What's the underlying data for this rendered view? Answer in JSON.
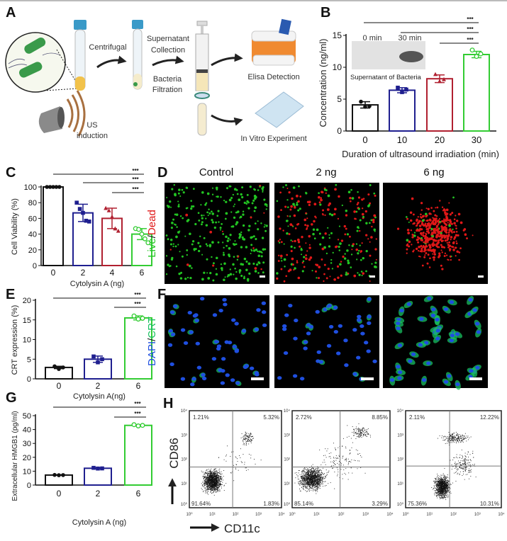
{
  "panel_labels": {
    "a": "A",
    "b": "B",
    "c": "C",
    "d": "D",
    "e": "E",
    "f": "F",
    "g": "G",
    "h": "H"
  },
  "panel_a": {
    "centrifugal": "Centrifugal",
    "supernatant": "Supernatant",
    "collection": "Collection",
    "bacteria": "Bacteria",
    "filtration": "Filtration",
    "elisa": "Elisa Detection",
    "in_vitro": "In Vitro Experiment",
    "us": "US",
    "induction": "induction"
  },
  "panel_b_inset": {
    "lane1": "0 min",
    "lane2": "30 min",
    "caption": "Supernatant of Bacteria"
  },
  "panel_d": {
    "columns": [
      "Control",
      "2 ng",
      "6 ng"
    ],
    "live": "Live",
    "sep": "/",
    "dead": "Dead",
    "live_color": "#22c422",
    "dead_color": "#e01818"
  },
  "panel_f": {
    "dapi": "DAPI",
    "sep": "/",
    "crt": "CRT",
    "dapi_color": "#1f4fe0",
    "crt_color": "#18c060"
  },
  "panel_h": {
    "y_label": "CD86",
    "x_label": "CD11c",
    "ticks": [
      "10⁰",
      "10¹",
      "10²",
      "10³",
      "10⁴"
    ],
    "plots": [
      {
        "ul": "1.21%",
        "ur": "5.32%",
        "ll": "91.64%",
        "lr": "1.83%"
      },
      {
        "ul": "2.72%",
        "ur": "8.85%",
        "ll": "85.14%",
        "lr": "3.29%"
      },
      {
        "ul": "2.11%",
        "ur": "12.22%",
        "ll": "75.36%",
        "lr": "10.31%"
      }
    ]
  },
  "colors": {
    "black": "#111111",
    "blue": "#1f1f8f",
    "red": "#b02030",
    "green": "#33cc33"
  },
  "chart_data": [
    {
      "panel": "B",
      "type": "bar",
      "categories": [
        "0",
        "10",
        "20",
        "30"
      ],
      "values": [
        4.1,
        6.4,
        8.2,
        12.0
      ],
      "points": [
        [
          4.6,
          3.8,
          3.9
        ],
        [
          6.8,
          6.1,
          6.5
        ],
        [
          8.9,
          7.8,
          8.1
        ],
        [
          12.7,
          11.7,
          12.1
        ]
      ],
      "errors": [
        0.5,
        0.4,
        0.6,
        0.5
      ],
      "xlabel": "Duration of ultrasound irradiation (min)",
      "ylabel": "Concentration (ng/ml)",
      "ylim": [
        0,
        15
      ],
      "yticks": [
        "0",
        "5",
        "10",
        "15"
      ],
      "significance": [
        {
          "from": "0",
          "to": "30",
          "label": "***"
        },
        {
          "from": "10",
          "to": "30",
          "label": "***"
        },
        {
          "from": "20",
          "to": "30",
          "label": "***"
        }
      ]
    },
    {
      "panel": "C",
      "type": "bar",
      "categories": [
        "0",
        "2",
        "4",
        "6"
      ],
      "values": [
        100,
        67,
        60,
        40
      ],
      "points": [
        [
          100,
          100,
          100,
          100,
          100
        ],
        [
          80,
          72,
          67,
          57,
          56
        ],
        [
          73,
          70,
          62,
          47,
          44
        ],
        [
          47,
          46,
          40,
          34,
          29
        ]
      ],
      "errors": [
        0,
        11,
        13,
        7
      ],
      "xlabel": "Cytolysin A (ng)",
      "ylabel": "Cell Viability (%)",
      "ylim": [
        0,
        100
      ],
      "yticks": [
        "0",
        "20",
        "40",
        "60",
        "80",
        "100"
      ],
      "significance": [
        {
          "from": "0",
          "to": "6",
          "label": "***"
        },
        {
          "from": "2",
          "to": "6",
          "label": "***"
        },
        {
          "from": "4",
          "to": "6",
          "label": "***"
        }
      ]
    },
    {
      "panel": "E",
      "type": "bar",
      "categories": [
        "0",
        "2",
        "6"
      ],
      "values": [
        2.9,
        5.0,
        15.5
      ],
      "points": [
        [
          3.2,
          2.5,
          2.9
        ],
        [
          5.7,
          4.2,
          5.0
        ],
        [
          16.0,
          15.2,
          15.4
        ]
      ],
      "errors": [
        0.3,
        0.8,
        0.5
      ],
      "xlabel": "Cytolysin A(ng)",
      "ylabel": "CRT expression (%)",
      "ylim": [
        0,
        20
      ],
      "yticks": [
        "0",
        "5",
        "10",
        "15",
        "20"
      ],
      "significance": [
        {
          "from": "0",
          "to": "6",
          "label": "***"
        },
        {
          "from": "2",
          "to": "6",
          "label": "***"
        }
      ]
    },
    {
      "panel": "G",
      "type": "bar",
      "categories": [
        "0",
        "2",
        "6"
      ],
      "values": [
        7.2,
        12.1,
        43.0
      ],
      "points": [
        [
          7.3,
          7.1,
          7.2
        ],
        [
          12.4,
          11.9,
          12.0
        ],
        [
          43.5,
          42.6,
          43.0
        ]
      ],
      "errors": [
        0.2,
        0.3,
        0.5
      ],
      "xlabel": "Cytolysin A (ng)",
      "ylabel": "Extracellular HMGB1 (pg/ml)",
      "ylim": [
        0,
        50
      ],
      "yticks": [
        "0",
        "10",
        "20",
        "30",
        "40",
        "50"
      ],
      "significance": [
        {
          "from": "0",
          "to": "6",
          "label": "***"
        },
        {
          "from": "2",
          "to": "6",
          "label": "***"
        }
      ]
    }
  ]
}
